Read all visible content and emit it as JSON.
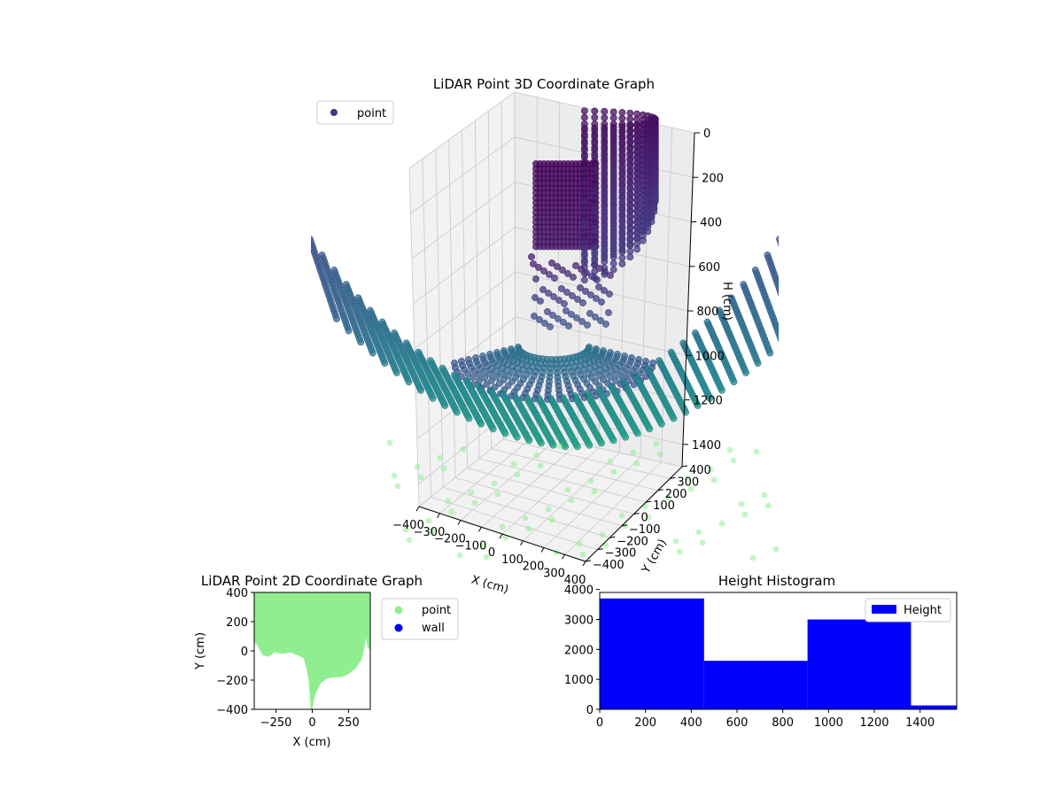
{
  "chart_data": [
    {
      "type": "scatter3d",
      "title": "LiDAR Point 3D Coordinate Graph",
      "xlabel": "X (cm)",
      "ylabel": "Y (cm)",
      "zlabel": "H (cm)",
      "xticks": [
        "−400",
        "−300",
        "−200",
        "−100",
        "0",
        "100",
        "200",
        "300",
        "400"
      ],
      "yticks": [
        "−400",
        "−300",
        "−200",
        "−100",
        "0",
        "100",
        "200",
        "300",
        "400"
      ],
      "zticks": [
        "0",
        "200",
        "400",
        "600",
        "800",
        "1000",
        "1200",
        "1400"
      ],
      "zlim": [
        0,
        1500
      ],
      "zlim_inverted": true,
      "grid": true,
      "legend": {
        "placement": "upper-left",
        "entries": [
          {
            "label": "point",
            "color": "#3f3a7d"
          }
        ]
      },
      "colormap": "viridis",
      "structure": {
        "bowl_rows": 26,
        "bowl_cols": 40,
        "bowl_base_depth": 1200,
        "bowl_wall_height": 800,
        "wall_columns": 24,
        "wall_top": 0,
        "wall_bottom": 600,
        "box_top": 150,
        "box_bottom": 500
      }
    },
    {
      "type": "scatter",
      "title": "LiDAR Point 2D Coordinate Graph",
      "xlabel": "X (cm)",
      "ylabel": "Y (cm)",
      "xlim": [
        -400,
        400
      ],
      "ylim": [
        -400,
        400
      ],
      "xticks": [
        "−250",
        "0",
        "250"
      ],
      "xtick_values": [
        -250,
        0,
        250
      ],
      "yticks": [
        "−400",
        "−200",
        "0",
        "200",
        "400"
      ],
      "ytick_values": [
        -400,
        -200,
        0,
        200,
        400
      ],
      "legend": {
        "placement": "outside-right",
        "entries": [
          {
            "label": "point",
            "color": "#90ee90"
          },
          {
            "label": "wall",
            "color": "#0000ff"
          }
        ]
      },
      "point_region": {
        "top_y": 400,
        "boundary": [
          [
            -400,
            60
          ],
          [
            -380,
            40
          ],
          [
            -360,
            0
          ],
          [
            -340,
            -30
          ],
          [
            -300,
            -40
          ],
          [
            -260,
            -10
          ],
          [
            -200,
            -20
          ],
          [
            -150,
            -10
          ],
          [
            -100,
            -30
          ],
          [
            -60,
            -50
          ],
          [
            -40,
            -120
          ],
          [
            -25,
            -200
          ],
          [
            -15,
            -330
          ],
          [
            -10,
            -400
          ],
          [
            0,
            -400
          ],
          [
            20,
            -300
          ],
          [
            60,
            -220
          ],
          [
            100,
            -190
          ],
          [
            150,
            -180
          ],
          [
            200,
            -180
          ],
          [
            250,
            -160
          ],
          [
            300,
            -120
          ],
          [
            340,
            -60
          ],
          [
            360,
            20
          ],
          [
            370,
            90
          ],
          [
            380,
            30
          ],
          [
            400,
            0
          ]
        ]
      }
    },
    {
      "type": "bar",
      "title": "Height Histogram",
      "xlim": [
        0,
        1560
      ],
      "ylim": [
        0,
        3900
      ],
      "xticks": [
        "0",
        "200",
        "400",
        "600",
        "800",
        "1000",
        "1200",
        "1400"
      ],
      "xtick_values": [
        0,
        200,
        400,
        600,
        800,
        1000,
        1200,
        1400
      ],
      "yticks": [
        "0",
        "1000",
        "2000",
        "3000",
        "4000"
      ],
      "ytick_values": [
        0,
        1000,
        2000,
        3000,
        4000
      ],
      "legend": {
        "placement": "upper-right",
        "entries": [
          {
            "label": "Height",
            "color": "#0000ff"
          }
        ]
      },
      "bins": [
        {
          "start": 0,
          "end": 456,
          "value": 3700
        },
        {
          "start": 456,
          "end": 908,
          "value": 1620
        },
        {
          "start": 908,
          "end": 1360,
          "value": 3000
        },
        {
          "start": 1360,
          "end": 1560,
          "value": 130
        }
      ],
      "color": "#0000ff"
    }
  ]
}
